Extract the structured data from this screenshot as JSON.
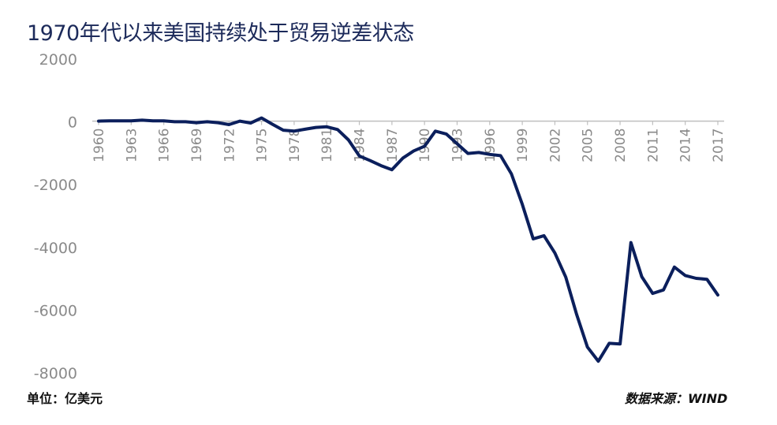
{
  "title": "1970年代以来美国持续处于贸易逆差状态",
  "unit_label": "单位：亿美元",
  "source_label": "数据来源：WIND",
  "colors": {
    "line": "#0b1f5c",
    "axis_text": "#8a8a8a",
    "axis_line": "#bfbfbf"
  },
  "chart_data": {
    "type": "line",
    "xlabel": "",
    "ylabel": "",
    "ylim": [
      -8000,
      2000
    ],
    "yticks": [
      2000,
      0,
      -2000,
      -4000,
      -6000,
      -8000
    ],
    "xticks": [
      "1960",
      "1963",
      "1966",
      "1969",
      "1972",
      "1975",
      "1978",
      "1981",
      "1984",
      "1987",
      "1990",
      "1993",
      "1996",
      "1999",
      "2002",
      "2005",
      "2008",
      "2011",
      "2014",
      "2017"
    ],
    "grid": false,
    "x": [
      1960,
      1961,
      1962,
      1963,
      1964,
      1965,
      1966,
      1967,
      1968,
      1969,
      1970,
      1971,
      1972,
      1973,
      1974,
      1975,
      1976,
      1977,
      1978,
      1979,
      1980,
      1981,
      1982,
      1983,
      1984,
      1985,
      1986,
      1987,
      1988,
      1989,
      1990,
      1991,
      1992,
      1993,
      1994,
      1995,
      1996,
      1997,
      1998,
      1999,
      2000,
      2001,
      2002,
      2003,
      2004,
      2005,
      2006,
      2007,
      2008,
      2009,
      2010,
      2011,
      2012,
      2013,
      2014,
      2015,
      2016,
      2017
    ],
    "series": [
      {
        "name": "",
        "values": [
          0,
          10,
          10,
          10,
          30,
          10,
          10,
          -20,
          -20,
          -50,
          -20,
          -50,
          -110,
          0,
          -60,
          100,
          -100,
          -290,
          -320,
          -260,
          -200,
          -180,
          -270,
          -600,
          -1110,
          -1260,
          -1420,
          -1550,
          -1180,
          -950,
          -800,
          -320,
          -410,
          -720,
          -1030,
          -1000,
          -1060,
          -1100,
          -1680,
          -2650,
          -3750,
          -3650,
          -4200,
          -4970,
          -6160,
          -7200,
          -7650,
          -7080,
          -7100,
          -3870,
          -4960,
          -5490,
          -5380,
          -4650,
          -4920,
          -5010,
          -5040,
          -5540
        ]
      }
    ]
  }
}
